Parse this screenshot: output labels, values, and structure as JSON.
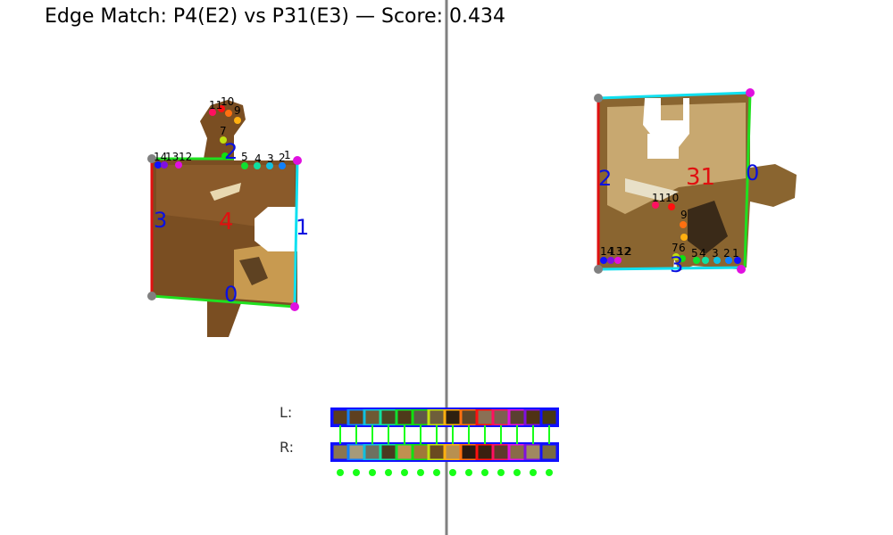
{
  "title": "Edge Match: P4(E2) vs P31(E3) — Score: 0.434",
  "left_piece": {
    "id": "4",
    "edge_labels": [
      "0",
      "1",
      "2",
      "3"
    ],
    "point_labels": [
      "1",
      "2",
      "3",
      "4",
      "5",
      "7",
      "8",
      "9",
      "10",
      "11",
      "12",
      "13",
      "14"
    ]
  },
  "right_piece": {
    "id": "31",
    "edge_labels": [
      "0",
      "2",
      "3"
    ],
    "point_labels": [
      "1",
      "2",
      "3",
      "4",
      "5",
      "6",
      "7",
      "9",
      "10",
      "11",
      "12",
      "13",
      "14"
    ]
  },
  "strip": {
    "left_label": "L:",
    "right_label": "R:",
    "left_colors": [
      "#5a3d1c",
      "#5e4020",
      "#6e5a33",
      "#4b4622",
      "#4e3a1a",
      "#5f5848",
      "#6e5e3a",
      "#2e2010",
      "#5b4528",
      "#8a7055",
      "#7d5f4f",
      "#5a4030",
      "#4f3214",
      "#473812"
    ],
    "right_colors": [
      "#8a7550",
      "#a69a7a",
      "#6e7060",
      "#4a3a20",
      "#c09050",
      "#a07838",
      "#6a4a20",
      "#b89050",
      "#2a1a10",
      "#3a2010",
      "#5e3a2a",
      "#8a6a48",
      "#a08860",
      "#7a6a40"
    ],
    "match_count": 14,
    "match_color": "#18ff18"
  },
  "colors": {
    "divider": "#808080",
    "edge_blue": "#0a10e0",
    "piece_red": "#e01010"
  }
}
